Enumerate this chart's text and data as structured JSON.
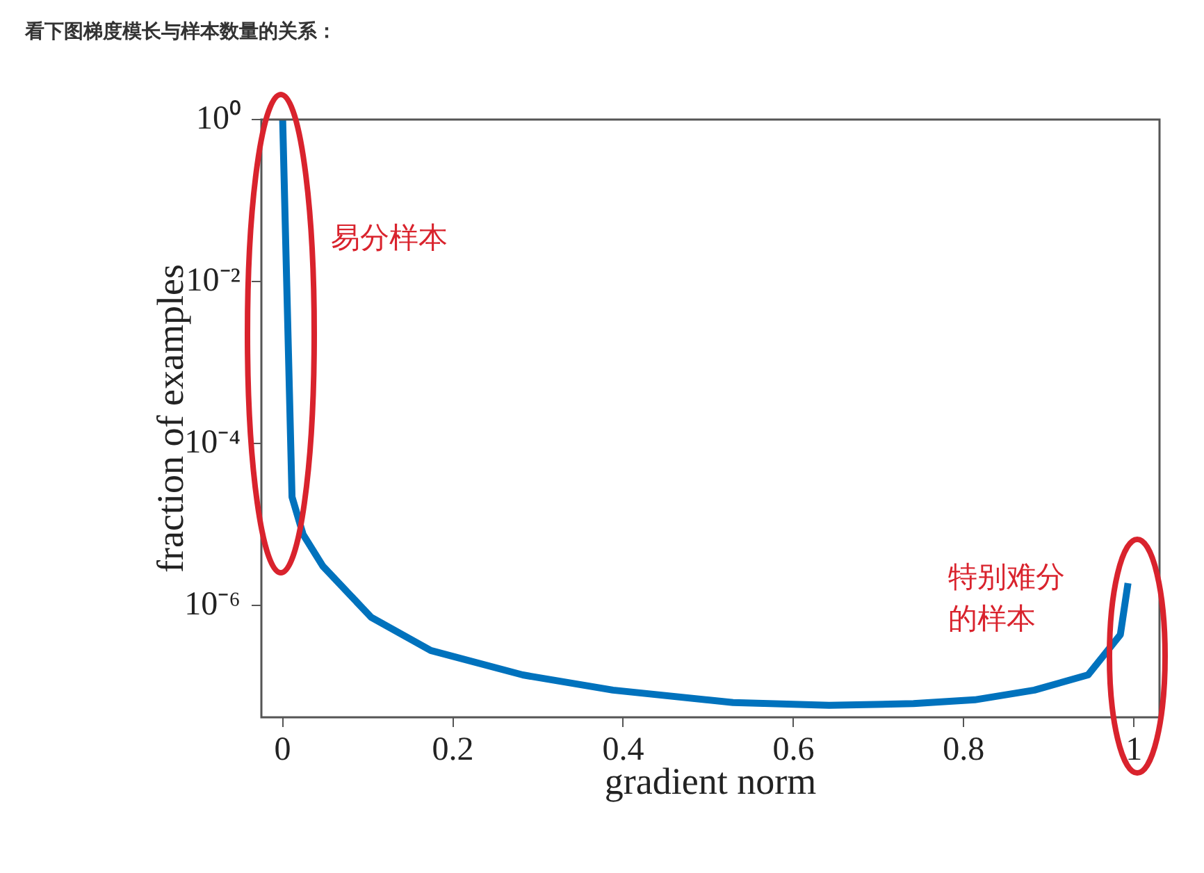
{
  "chart_data": {
    "type": "line",
    "title": "看下图梯度模长与样本数量的关系：",
    "xlabel": "gradient norm",
    "ylabel": "fraction of examples",
    "log": "y",
    "marker": "none",
    "line_style": "solid",
    "x": [
      0,
      0.011,
      0.024,
      0.047,
      0.104,
      0.174,
      0.282,
      0.388,
      0.529,
      0.642,
      0.741,
      0.813,
      0.883,
      0.946,
      0.984,
      0.993
    ],
    "series": [
      {
        "color": "#0072bd",
        "values": [
          1,
          2.2e-05,
          7.6e-06,
          3.1e-06,
          7.2e-07,
          2.8e-07,
          1.4e-07,
          9.1e-08,
          6.4e-08,
          5.9e-08,
          6.2e-08,
          6.9e-08,
          9.1e-08,
          1.4e-07,
          4.4e-07,
          1.9e-06
        ]
      }
    ],
    "xlim": [
      -0.025,
      1.03
    ],
    "ylim": [
      4.2e-08,
      1
    ],
    "xticks": [
      0,
      0.2,
      0.4,
      0.6,
      0.8,
      1
    ],
    "yticks": [
      {
        "value": 1e-06,
        "label": "10⁻⁶"
      },
      {
        "value": 0.0001,
        "label": "10⁻⁴"
      },
      {
        "value": 0.01,
        "label": "10⁻²"
      },
      {
        "value": 1,
        "label": "10⁰"
      }
    ],
    "annotations": [
      "易分样本",
      "特别难分的样本"
    ]
  }
}
